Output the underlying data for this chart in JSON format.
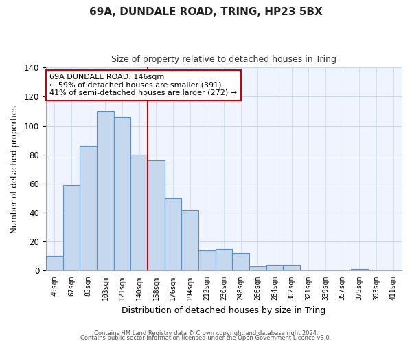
{
  "title": "69A, DUNDALE ROAD, TRING, HP23 5BX",
  "subtitle": "Size of property relative to detached houses in Tring",
  "xlabel": "Distribution of detached houses by size in Tring",
  "ylabel": "Number of detached properties",
  "bar_labels": [
    "49sqm",
    "67sqm",
    "85sqm",
    "103sqm",
    "121sqm",
    "140sqm",
    "158sqm",
    "176sqm",
    "194sqm",
    "212sqm",
    "230sqm",
    "248sqm",
    "266sqm",
    "284sqm",
    "302sqm",
    "321sqm",
    "339sqm",
    "357sqm",
    "375sqm",
    "393sqm",
    "411sqm"
  ],
  "bar_values": [
    10,
    59,
    86,
    110,
    106,
    80,
    76,
    50,
    42,
    14,
    15,
    12,
    3,
    4,
    4,
    0,
    0,
    0,
    1,
    0,
    0
  ],
  "bar_color": "#c5d8ee",
  "bar_edgecolor": "#5a8fc0",
  "ylim": [
    0,
    140
  ],
  "yticks": [
    0,
    20,
    40,
    60,
    80,
    100,
    120,
    140
  ],
  "vline_x_index": 5.5,
  "vline_color": "#cc0000",
  "annotation_title": "69A DUNDALE ROAD: 146sqm",
  "annotation_line1": "← 59% of detached houses are smaller (391)",
  "annotation_line2": "41% of semi-detached houses are larger (272) →",
  "annotation_box_edgecolor": "#cc0000",
  "bg_color": "#ffffff",
  "plot_bg_color": "#f0f4ff",
  "grid_color": "#c8d8ec",
  "footer1": "Contains HM Land Registry data © Crown copyright and database right 2024.",
  "footer2": "Contains public sector information licensed under the Open Government Licence v3.0."
}
